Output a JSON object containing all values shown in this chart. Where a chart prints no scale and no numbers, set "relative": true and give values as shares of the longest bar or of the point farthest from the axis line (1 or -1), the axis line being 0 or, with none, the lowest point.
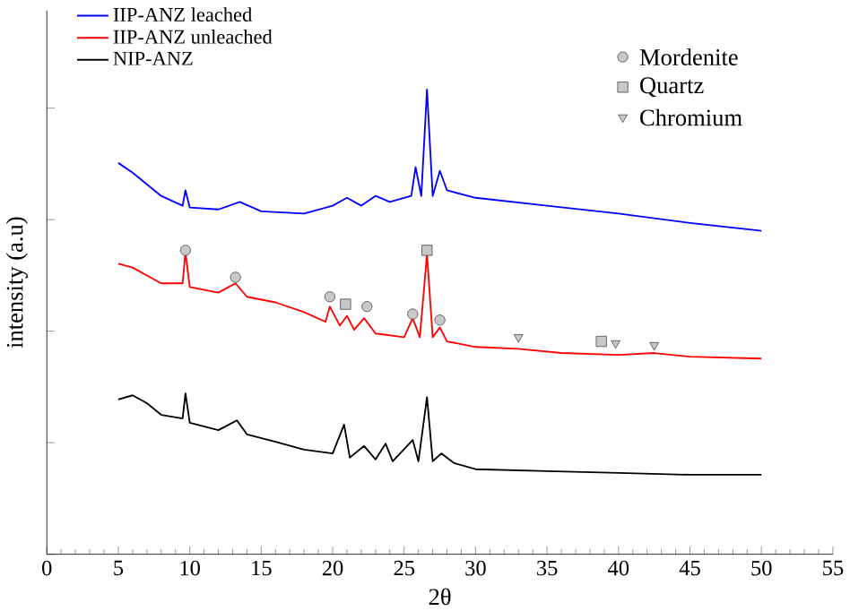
{
  "chart_data": {
    "type": "line",
    "xlabel": "2θ",
    "ylabel": "intensity (a.u)",
    "relative": true,
    "xlim": [
      0,
      55
    ],
    "xticks": [
      0,
      5,
      10,
      15,
      20,
      25,
      30,
      35,
      40,
      45,
      50,
      55
    ],
    "legend": "top left",
    "grid": false,
    "marker": "none",
    "series": [
      {
        "name": "IIP-ANZ leached",
        "color": "#0000ff",
        "x": [
          5,
          6,
          8,
          9.5,
          9.7,
          10,
          12,
          13.5,
          15,
          18,
          20,
          21,
          22,
          23,
          24,
          25.5,
          25.8,
          26.2,
          26.6,
          27,
          27.5,
          28,
          30,
          35,
          40,
          45,
          50
        ],
        "values": [
          0.842,
          0.821,
          0.771,
          0.75,
          0.783,
          0.746,
          0.742,
          0.758,
          0.738,
          0.733,
          0.75,
          0.767,
          0.75,
          0.771,
          0.758,
          0.771,
          0.833,
          0.771,
          1.0,
          0.771,
          0.825,
          0.783,
          0.767,
          0.75,
          0.733,
          0.713,
          0.696
        ]
      },
      {
        "name": "IIP-ANZ unleached",
        "color": "#ff0000",
        "x": [
          5,
          6,
          8,
          9.5,
          9.7,
          10,
          12,
          13.2,
          14,
          16,
          18,
          19.5,
          19.8,
          20.5,
          21,
          21.5,
          22.2,
          23,
          25,
          25.6,
          26.1,
          26.6,
          27,
          27.5,
          28,
          30,
          33,
          36,
          40,
          42.5,
          45,
          50
        ],
        "values": [
          0.625,
          0.617,
          0.583,
          0.583,
          0.65,
          0.575,
          0.563,
          0.583,
          0.554,
          0.542,
          0.521,
          0.5,
          0.533,
          0.492,
          0.513,
          0.483,
          0.508,
          0.475,
          0.467,
          0.508,
          0.467,
          0.646,
          0.467,
          0.488,
          0.458,
          0.446,
          0.442,
          0.433,
          0.429,
          0.433,
          0.425,
          0.421
        ]
      },
      {
        "name": "NIP-ANZ",
        "color": "#000000",
        "x": [
          5,
          6,
          7,
          8,
          9.5,
          9.7,
          10,
          12,
          13.3,
          14,
          16,
          18,
          20,
          20.8,
          21.2,
          22.2,
          23,
          23.7,
          24.2,
          25.6,
          26,
          26.6,
          27,
          27.6,
          28.5,
          30,
          35,
          40,
          45,
          50
        ],
        "values": [
          0.333,
          0.342,
          0.325,
          0.3,
          0.292,
          0.346,
          0.283,
          0.267,
          0.288,
          0.258,
          0.242,
          0.225,
          0.217,
          0.279,
          0.208,
          0.233,
          0.204,
          0.238,
          0.2,
          0.246,
          0.2,
          0.338,
          0.2,
          0.217,
          0.196,
          0.183,
          0.179,
          0.175,
          0.171,
          0.171
        ]
      },
      {
        "name": "Mordenite",
        "type": "scatter",
        "marker": "circle",
        "color": "#c8c8c8",
        "x": [
          9.7,
          13.2,
          19.8,
          22.4,
          25.6,
          27.5
        ],
        "values": [
          0.654,
          0.596,
          0.554,
          0.533,
          0.517,
          0.504
        ]
      },
      {
        "name": "Quartz",
        "type": "scatter",
        "marker": "square",
        "color": "#c8c8c8",
        "x": [
          20.9,
          26.6,
          38.8
        ],
        "values": [
          0.538,
          0.654,
          0.458
        ]
      },
      {
        "name": "Chromium",
        "type": "scatter",
        "marker": "triangle",
        "color": "#c8c8c8",
        "x": [
          33.0,
          39.8,
          42.5
        ],
        "values": [
          0.467,
          0.454,
          0.45
        ]
      }
    ]
  }
}
